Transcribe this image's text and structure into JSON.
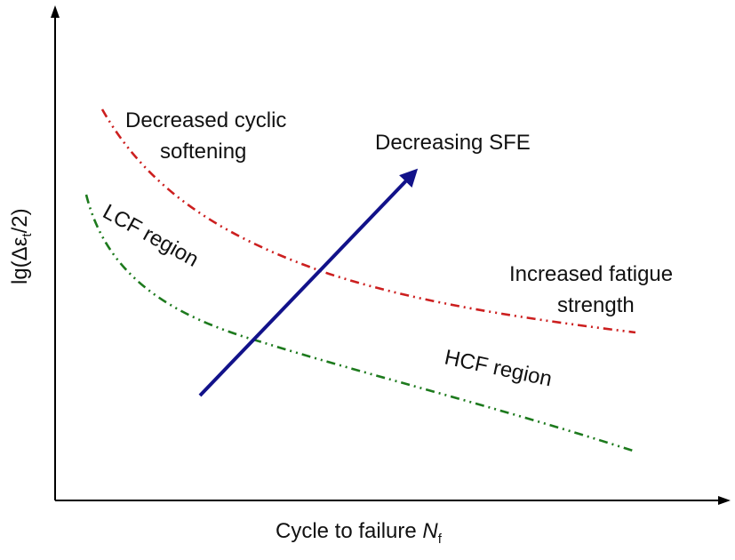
{
  "figure": {
    "y_axis_label": "lg(Δε",
    "y_axis_sub": "t",
    "y_axis_tail": "/2)",
    "x_axis_label": "Cycle to failure ",
    "x_axis_var": "N",
    "x_axis_sub": "f",
    "curves": [
      {
        "name": "upper-curve",
        "color": "#cc1f1f"
      },
      {
        "name": "lower-curve",
        "color": "#1d7a1d"
      }
    ],
    "arrow_color": "#12128a",
    "annotations": {
      "decreased_1": "Decreased cyclic",
      "decreased_2": "softening",
      "decreasing_sfe": "Decreasing SFE",
      "lcf": "LCF region",
      "increased_1": "Increased fatigue",
      "increased_2": "strength",
      "hcf": "HCF region"
    }
  }
}
